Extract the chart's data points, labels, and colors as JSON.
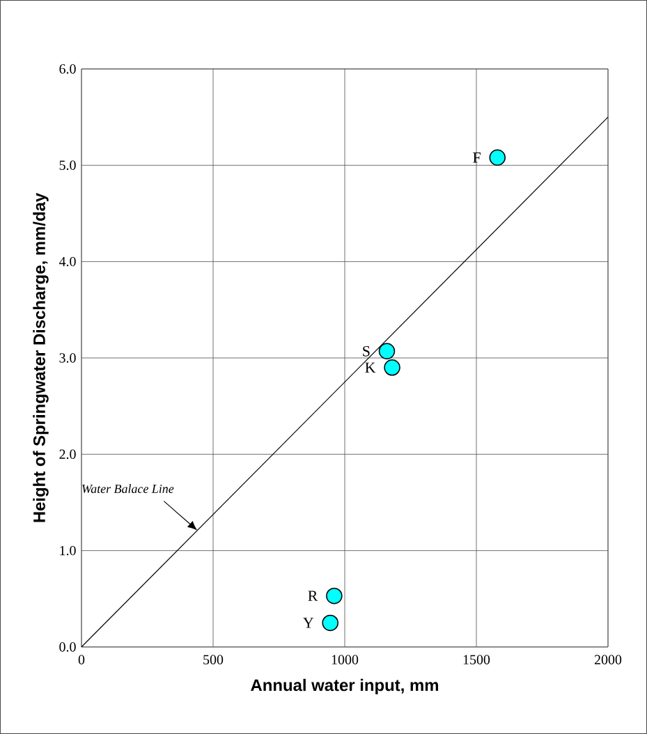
{
  "chart_data": {
    "type": "scatter",
    "xlabel": "Annual water input, mm",
    "ylabel": "Height of Springwater Discharge, mm/day",
    "xlim": [
      0,
      2000
    ],
    "xticks": [
      0,
      500,
      1000,
      1500,
      2000
    ],
    "ylim": [
      0,
      6
    ],
    "yticks": [
      {
        "value": 0,
        "label": "0.0"
      },
      {
        "value": 1,
        "label": "1.0"
      },
      {
        "value": 2,
        "label": "2.0"
      },
      {
        "value": 3,
        "label": "3.0"
      },
      {
        "value": 4,
        "label": "4.0"
      },
      {
        "value": 5,
        "label": "5.0"
      },
      {
        "value": 6,
        "label": "6.0"
      }
    ],
    "grid": true,
    "series": [
      {
        "marker": "circle",
        "color": "#00ffff",
        "x": [
          1580,
          1160,
          1180,
          960,
          945
        ],
        "values": [
          5.08,
          3.07,
          2.9,
          0.53,
          0.25
        ]
      },
      {
        "type": "line",
        "name": "Water Balace Line",
        "color": "#000000",
        "line_style": "solid",
        "marker": "none",
        "x": [
          0,
          2000
        ],
        "values": [
          0,
          5.5
        ]
      }
    ],
    "annotations": [
      {
        "text": "F",
        "x": 1580,
        "y": 5.08
      },
      {
        "text": "S",
        "x": 1160,
        "y": 3.07
      },
      {
        "text": "K",
        "x": 1180,
        "y": 2.9
      },
      {
        "text": "R",
        "x": 960,
        "y": 0.53
      },
      {
        "text": "Y",
        "x": 945,
        "y": 0.25
      }
    ]
  }
}
